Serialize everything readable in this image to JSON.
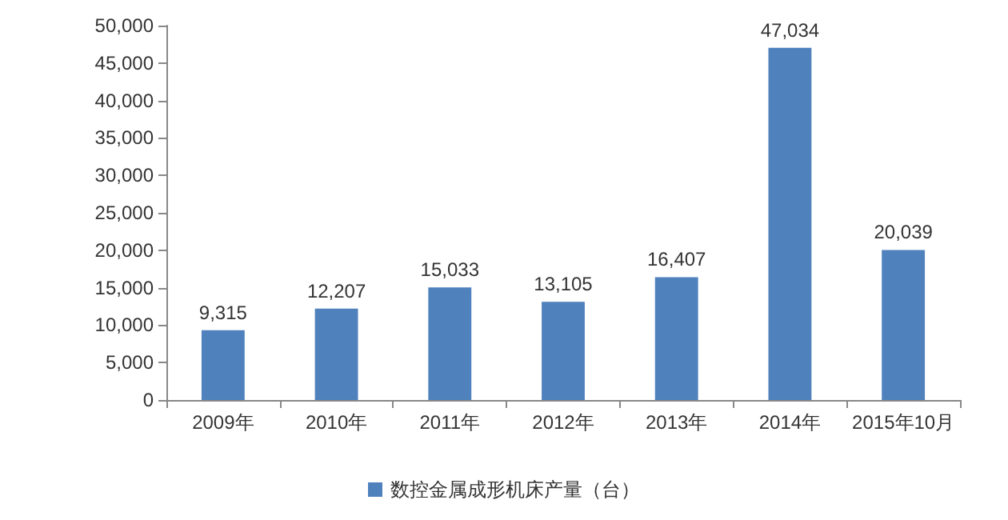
{
  "chart_data": {
    "type": "bar",
    "categories": [
      "2009年",
      "2010年",
      "2011年",
      "2012年",
      "2013年",
      "2014年",
      "2015年10月"
    ],
    "series": [
      {
        "name": "数控金属成形机床产量（台）",
        "color": "#4f81bd",
        "values": [
          9315,
          12207,
          15033,
          13105,
          16407,
          47034,
          20039
        ],
        "value_labels": [
          "9,315",
          "12,207",
          "15,033",
          "13,105",
          "16,407",
          "47,034",
          "20,039"
        ]
      }
    ],
    "ylim": [
      0,
      50000
    ],
    "yticks": [
      {
        "value": 0,
        "label": "0"
      },
      {
        "value": 5000,
        "label": "5,000"
      },
      {
        "value": 10000,
        "label": "10,000"
      },
      {
        "value": 15000,
        "label": "15,000"
      },
      {
        "value": 20000,
        "label": "20,000"
      },
      {
        "value": 25000,
        "label": "25,000"
      },
      {
        "value": 30000,
        "label": "30,000"
      },
      {
        "value": 35000,
        "label": "35,000"
      },
      {
        "value": 40000,
        "label": "40,000"
      },
      {
        "value": 45000,
        "label": "45,000"
      },
      {
        "value": 50000,
        "label": "50,000"
      }
    ],
    "grid": false,
    "legend": "bottom"
  }
}
